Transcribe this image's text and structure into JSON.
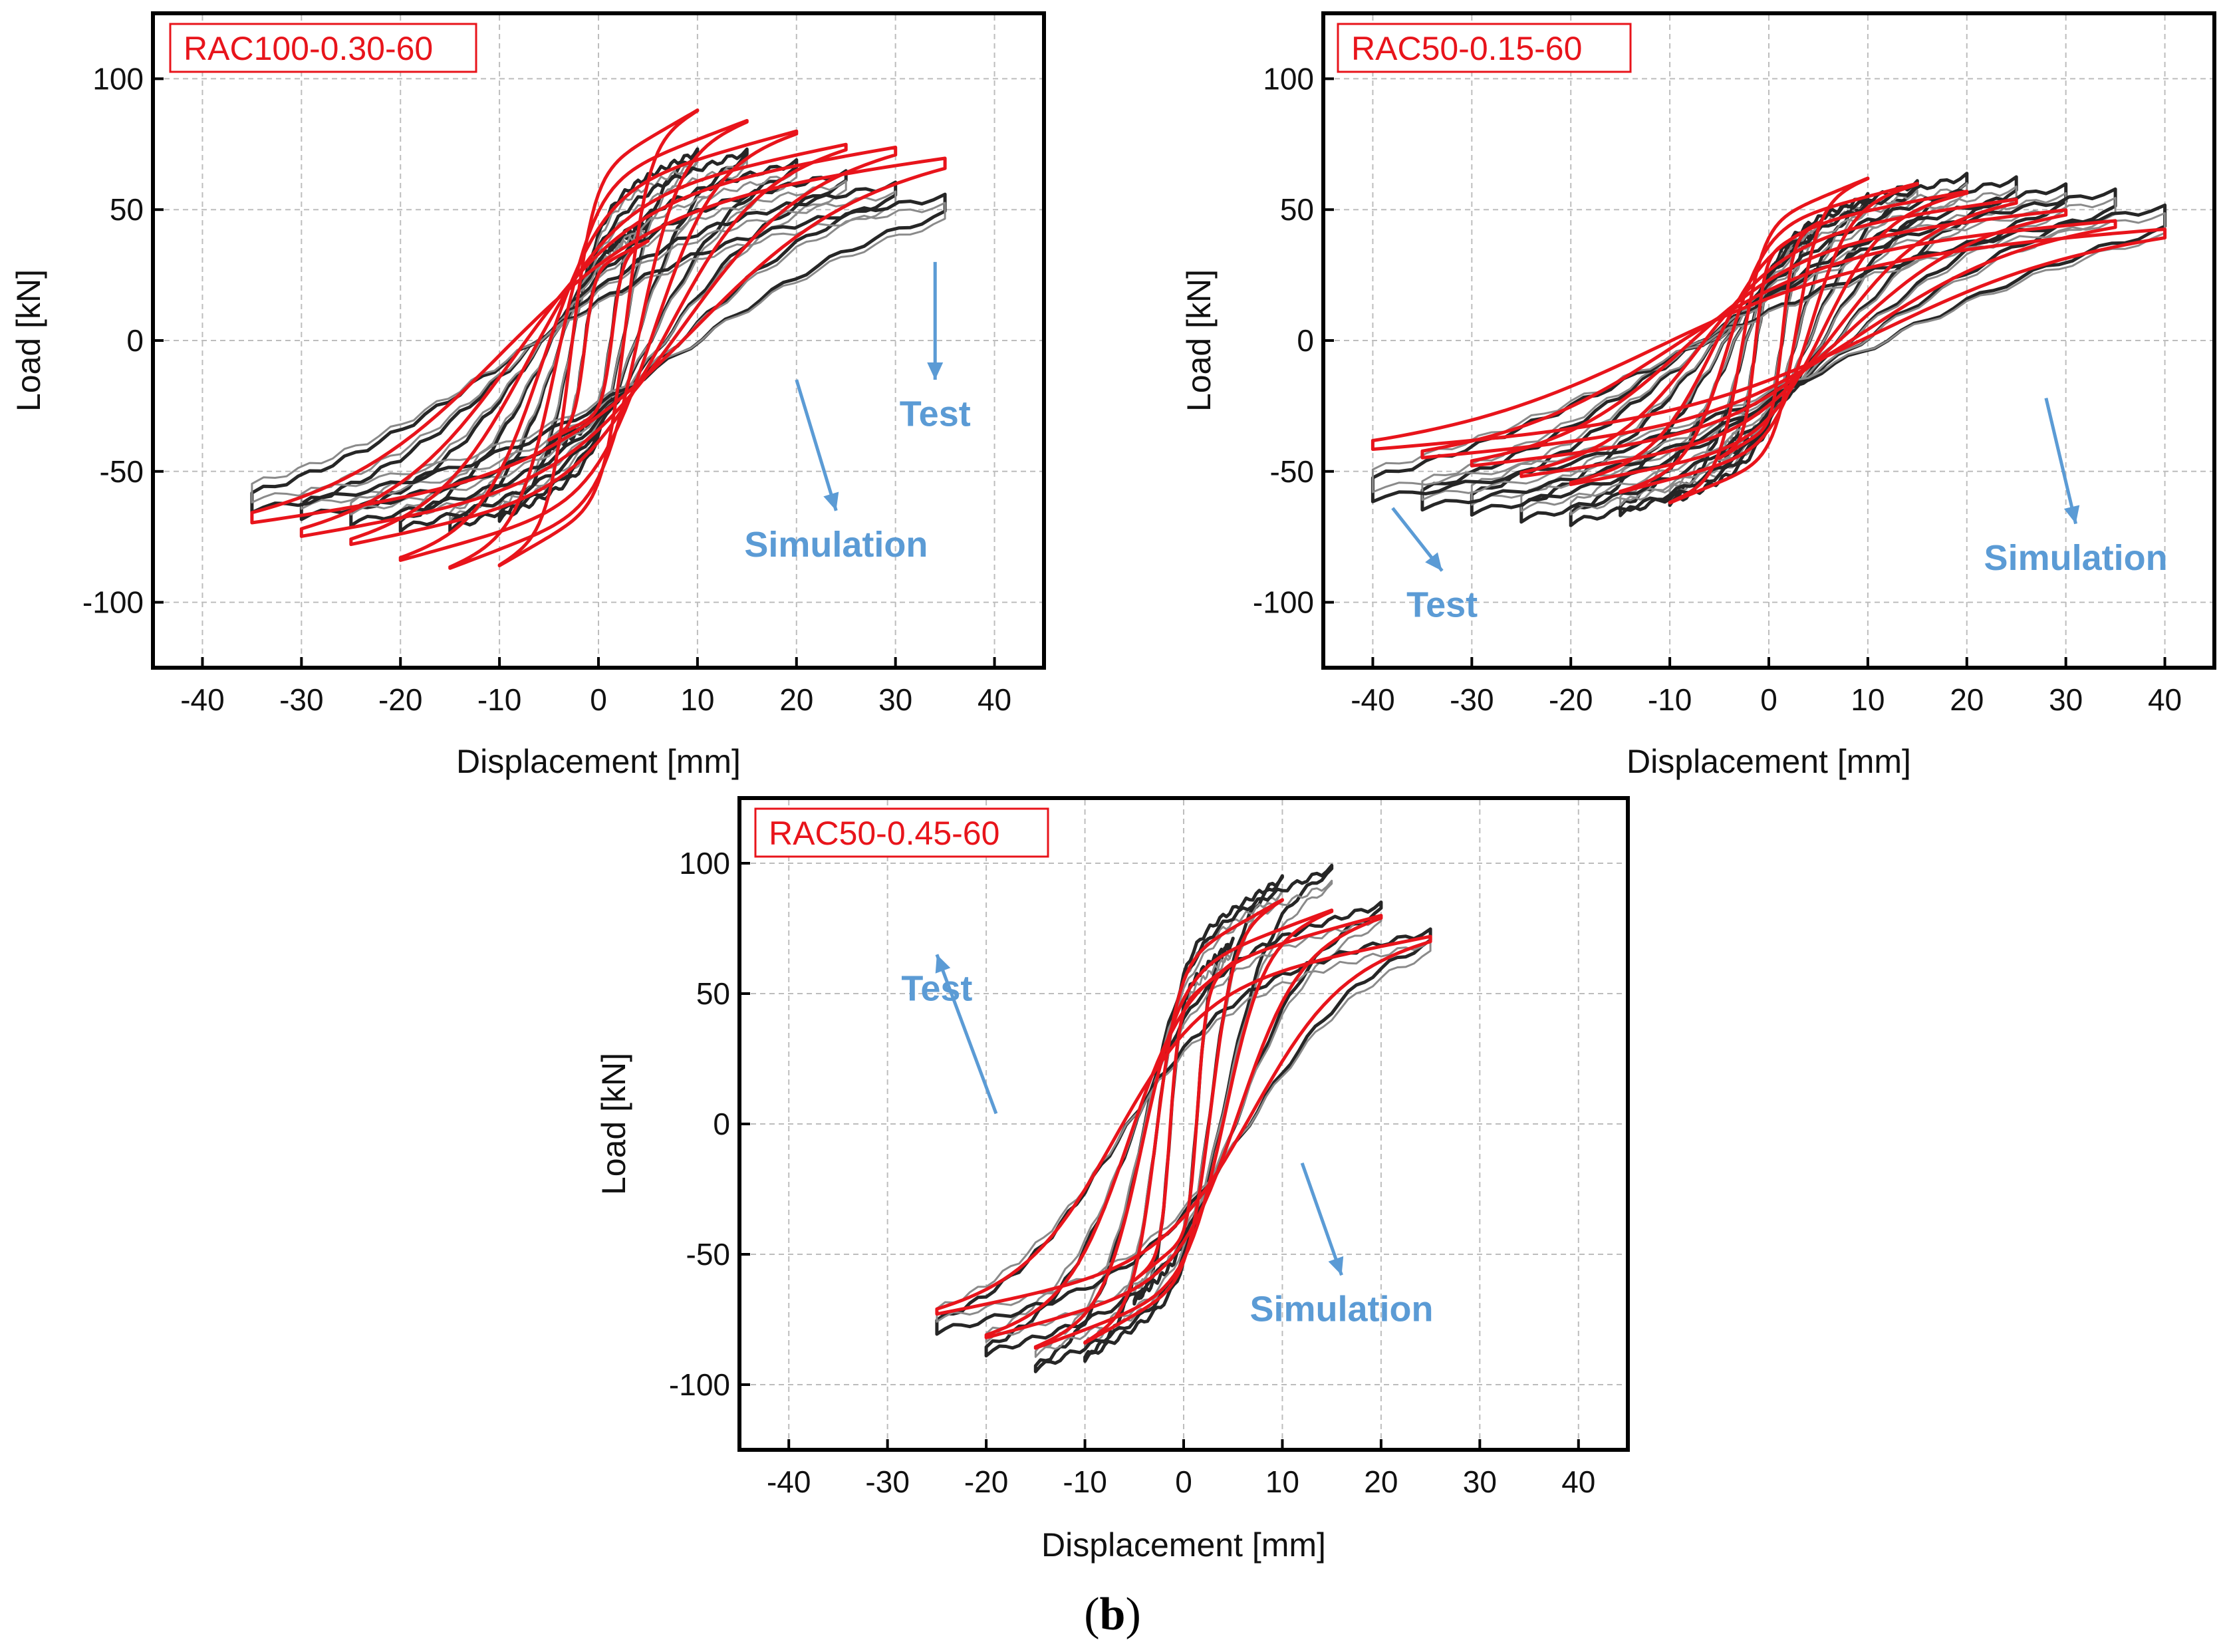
{
  "colors": {
    "simulation": "#e8141b",
    "test": "#262626",
    "test_light": "#8a8a8a",
    "annotation": "#5b9bd5",
    "grid": "#bdbdbd"
  },
  "caption": {
    "open": "(",
    "letter": "b",
    "close": ")"
  },
  "chart_data": [
    {
      "type": "line",
      "label": "RAC100-0.30-60",
      "xlabel": "Displacement [mm]",
      "ylabel": "Load [kN]",
      "xlim": [
        -45,
        45
      ],
      "ylim": [
        -125,
        125
      ],
      "xticks": [
        -40,
        -30,
        -20,
        -10,
        0,
        10,
        20,
        30,
        40
      ],
      "yticks": [
        100,
        50,
        0,
        -50,
        -100
      ],
      "grid": true,
      "annotations": [
        {
          "text": "Test",
          "text_at": [
            34,
            -25
          ],
          "arrow_to": [
            34,
            30
          ]
        },
        {
          "text": "Simulation",
          "text_at": [
            24,
            -75
          ],
          "arrow_to": [
            24,
            -60
          ],
          "arrow_from": [
            20,
            -15
          ]
        }
      ],
      "series": [
        {
          "role": "simulation",
          "loops": [
            {
              "d": 5,
              "p": 38,
              "n": -38,
              "k": 9
            },
            {
              "d": 10,
              "p": 88,
              "n": -86,
              "k": 8
            },
            {
              "d": 15,
              "p": 84,
              "n": -87,
              "k": 7
            },
            {
              "d": 20,
              "p": 80,
              "n": -84,
              "k": 6
            },
            {
              "d": 25,
              "p": 75,
              "n": -78,
              "k": 5
            },
            {
              "d": 30,
              "p": 74,
              "n": -75,
              "k": 4.5
            },
            {
              "d": 35,
              "p": 70,
              "n": -70,
              "k": 4
            }
          ]
        },
        {
          "role": "test",
          "loops": [
            {
              "d": 5,
              "p": 45,
              "n": -42,
              "k": 7
            },
            {
              "d": 10,
              "p": 72,
              "n": -68,
              "k": 6
            },
            {
              "d": 15,
              "p": 72,
              "n": -72,
              "k": 5
            },
            {
              "d": 20,
              "p": 68,
              "n": -72,
              "k": 4.5
            },
            {
              "d": 25,
              "p": 64,
              "n": -70,
              "k": 4
            },
            {
              "d": 30,
              "p": 60,
              "n": -68,
              "k": 3.5
            },
            {
              "d": 35,
              "p": 56,
              "n": -66,
              "k": 3
            }
          ]
        }
      ]
    },
    {
      "type": "line",
      "label": "RAC50-0.15-60",
      "xlabel": "Displacement [mm]",
      "ylabel": "Load [kN]",
      "xlim": [
        -45,
        45
      ],
      "ylim": [
        -125,
        125
      ],
      "xticks": [
        -40,
        -30,
        -20,
        -10,
        0,
        10,
        20,
        30,
        40
      ],
      "yticks": [
        100,
        50,
        0,
        -50,
        -100
      ],
      "grid": true,
      "annotations": [
        {
          "text": "Test",
          "text_at": [
            -33,
            -98
          ],
          "arrow_to": [
            -33,
            -90
          ],
          "arrow_from": [
            -38,
            -64
          ]
        },
        {
          "text": "Simulation",
          "text_at": [
            31,
            -80
          ],
          "arrow_to": [
            31,
            -67
          ],
          "arrow_from": [
            28,
            -22
          ]
        }
      ],
      "series": [
        {
          "role": "simulation",
          "loops": [
            {
              "d": 5,
              "p": 45,
              "n": -45,
              "k": 9
            },
            {
              "d": 10,
              "p": 62,
              "n": -62,
              "k": 8
            },
            {
              "d": 15,
              "p": 60,
              "n": -58,
              "k": 7
            },
            {
              "d": 20,
              "p": 57,
              "n": -55,
              "k": 6
            },
            {
              "d": 25,
              "p": 54,
              "n": -52,
              "k": 5
            },
            {
              "d": 30,
              "p": 50,
              "n": -48,
              "k": 4.5
            },
            {
              "d": 35,
              "p": 46,
              "n": -45,
              "k": 4
            },
            {
              "d": 40,
              "p": 43,
              "n": -42,
              "k": 3.5
            }
          ]
        },
        {
          "role": "test",
          "loops": [
            {
              "d": 5,
              "p": 42,
              "n": -45,
              "k": 6
            },
            {
              "d": 10,
              "p": 55,
              "n": -62,
              "k": 5
            },
            {
              "d": 15,
              "p": 60,
              "n": -66,
              "k": 4.5
            },
            {
              "d": 20,
              "p": 63,
              "n": -70,
              "k": 4
            },
            {
              "d": 25,
              "p": 62,
              "n": -69,
              "k": 3.5
            },
            {
              "d": 30,
              "p": 60,
              "n": -67,
              "k": 3
            },
            {
              "d": 35,
              "p": 58,
              "n": -65,
              "k": 3
            },
            {
              "d": 40,
              "p": 53,
              "n": -63,
              "k": 2.5
            }
          ]
        }
      ]
    },
    {
      "type": "line",
      "label": "RAC50-0.45-60",
      "xlabel": "Displacement [mm]",
      "ylabel": "Load [kN]",
      "xlim": [
        -45,
        45
      ],
      "ylim": [
        -125,
        125
      ],
      "xticks": [
        -40,
        -30,
        -20,
        -10,
        0,
        10,
        20,
        30,
        40
      ],
      "yticks": [
        100,
        50,
        0,
        -50,
        -100
      ],
      "grid": true,
      "annotations": [
        {
          "text": "Test",
          "text_at": [
            -25,
            55
          ],
          "arrow_to": [
            -25,
            46
          ],
          "arrow_from": [
            -19,
            4
          ]
        },
        {
          "text": "Simulation",
          "text_at": [
            16,
            -68
          ],
          "arrow_to": [
            16,
            -55
          ],
          "arrow_from": [
            12,
            -15
          ]
        }
      ],
      "series": [
        {
          "role": "simulation",
          "loops": [
            {
              "d": 5,
              "p": 62,
              "n": -60,
              "k": 10
            },
            {
              "d": 10,
              "p": 86,
              "n": -84,
              "k": 8
            },
            {
              "d": 15,
              "p": 82,
              "n": -86,
              "k": 7
            },
            {
              "d": 20,
              "p": 80,
              "n": -82,
              "k": 6
            },
            {
              "d": 25,
              "p": 72,
              "n": -73,
              "k": 5
            }
          ]
        },
        {
          "role": "test",
          "loops": [
            {
              "d": 5,
              "p": 70,
              "n": -68,
              "k": 8
            },
            {
              "d": 10,
              "p": 94,
              "n": -90,
              "k": 7
            },
            {
              "d": 15,
              "p": 98,
              "n": -94,
              "k": 6
            },
            {
              "d": 20,
              "p": 84,
              "n": -88,
              "k": 5
            },
            {
              "d": 25,
              "p": 74,
              "n": -80,
              "k": 4
            }
          ]
        }
      ]
    }
  ]
}
